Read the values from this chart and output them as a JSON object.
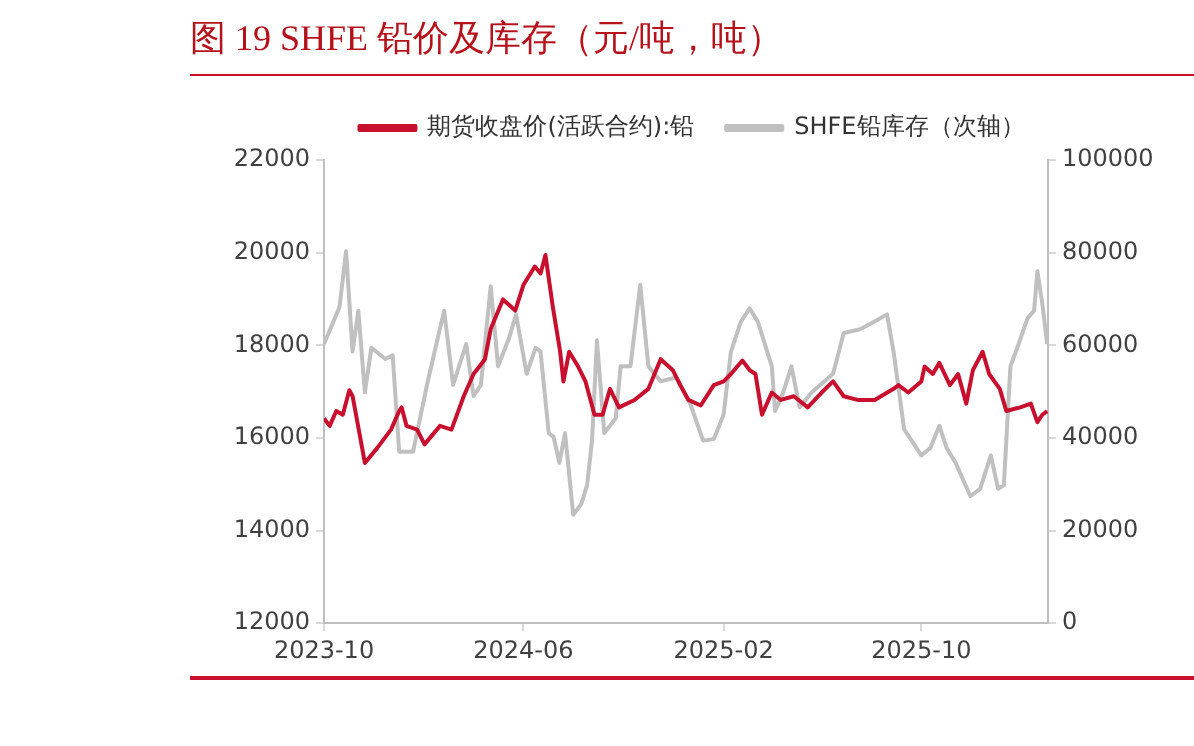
{
  "chart_data": {
    "type": "line",
    "title": "图 19 SHFE 铅价及库存（元/吨，吨）",
    "legend": "top",
    "grid": false,
    "marker": "none",
    "line_style": "solid",
    "xlim": [
      "2023-10-01",
      "2026-03-05"
    ],
    "xticks": [
      "2023-10",
      "2024-06",
      "2025-02",
      "2025-10"
    ],
    "ylim": [
      12000,
      22000
    ],
    "yticks": [
      12000,
      14000,
      16000,
      18000,
      20000,
      22000
    ],
    "y2lim": [
      0,
      100000
    ],
    "y2ticks": [
      0,
      20000,
      40000,
      60000,
      80000,
      100000
    ],
    "series": [
      {
        "name": "期货收盘价(活跃合约):铅",
        "color": "#c8102e",
        "axis": "y",
        "x": [
          "2023-10-01",
          "2023-10-08",
          "2023-10-16",
          "2023-10-24",
          "2023-11-01",
          "2023-11-05",
          "2023-11-15",
          "2023-11-20",
          "2023-12-05",
          "2023-12-22",
          "2024-01-01",
          "2024-01-04",
          "2024-01-10",
          "2024-01-23",
          "2024-02-01",
          "2024-02-20",
          "2024-03-05",
          "2024-03-20",
          "2024-04-01",
          "2024-04-15",
          "2024-04-22",
          "2024-05-07",
          "2024-05-22",
          "2024-06-01",
          "2024-06-15",
          "2024-06-22",
          "2024-06-28",
          "2024-07-07",
          "2024-07-16",
          "2024-07-20",
          "2024-07-27",
          "2024-08-07",
          "2024-08-16",
          "2024-08-27",
          "2024-09-06",
          "2024-09-15",
          "2024-09-26",
          "2024-10-15",
          "2024-11-01",
          "2024-11-16",
          "2024-12-01",
          "2024-12-10",
          "2024-12-20",
          "2025-01-04",
          "2025-01-20",
          "2025-02-01",
          "2025-02-10",
          "2025-02-24",
          "2025-03-05",
          "2025-03-12",
          "2025-03-20",
          "2025-04-01",
          "2025-04-12",
          "2025-04-28",
          "2025-05-15",
          "2025-06-01",
          "2025-06-15",
          "2025-06-28",
          "2025-07-15",
          "2025-08-05",
          "2025-08-28",
          "2025-09-03",
          "2025-09-15",
          "2025-10-01",
          "2025-10-05",
          "2025-10-15",
          "2025-10-23",
          "2025-11-05",
          "2025-11-15",
          "2025-11-25",
          "2025-12-03",
          "2025-12-15",
          "2025-12-23",
          "2026-01-05",
          "2026-01-13",
          "2026-01-30",
          "2026-02-12",
          "2026-02-20",
          "2026-02-26",
          "2026-03-04"
        ],
        "values": [
          16420,
          16260,
          16580,
          16500,
          17030,
          16900,
          15940,
          15460,
          15780,
          16180,
          16580,
          16660,
          16260,
          16180,
          15860,
          16260,
          16180,
          16900,
          17380,
          17700,
          18350,
          18990,
          18750,
          19300,
          19700,
          19550,
          19950,
          18830,
          17860,
          17220,
          17860,
          17540,
          17220,
          16500,
          16500,
          17060,
          16660,
          16820,
          17060,
          17700,
          17460,
          17140,
          16820,
          16700,
          17140,
          17220,
          17380,
          17670,
          17460,
          17380,
          16500,
          16980,
          16820,
          16900,
          16660,
          16980,
          17220,
          16900,
          16820,
          16820,
          17060,
          17140,
          16980,
          17220,
          17540,
          17380,
          17620,
          17140,
          17380,
          16740,
          17460,
          17860,
          17380,
          17060,
          16580,
          16660,
          16740,
          16340,
          16500,
          16580
        ]
      },
      {
        "name": "SHFE铅库存（次轴）",
        "color": "#c0c0c0",
        "axis": "y2",
        "x": [
          "2023-10-01",
          "2023-10-20",
          "2023-10-28",
          "2023-11-05",
          "2023-11-12",
          "2023-11-20",
          "2023-11-28",
          "2023-12-15",
          "2023-12-24",
          "2024-01-01",
          "2024-01-18",
          "2024-02-05",
          "2024-02-25",
          "2024-03-07",
          "2024-03-23",
          "2024-04-01",
          "2024-04-10",
          "2024-04-22",
          "2024-05-01",
          "2024-05-15",
          "2024-05-23",
          "2024-06-05",
          "2024-06-16",
          "2024-06-22",
          "2024-07-02",
          "2024-07-08",
          "2024-07-15",
          "2024-07-22",
          "2024-08-01",
          "2024-08-11",
          "2024-08-18",
          "2024-08-24",
          "2024-08-30",
          "2024-09-08",
          "2024-09-22",
          "2024-09-28",
          "2024-10-10",
          "2024-10-22",
          "2024-11-01",
          "2024-11-16",
          "2024-12-05",
          "2024-12-22",
          "2025-01-07",
          "2025-01-20",
          "2025-02-01",
          "2025-02-10",
          "2025-02-22",
          "2025-03-05",
          "2025-03-15",
          "2025-04-01",
          "2025-04-05",
          "2025-04-15",
          "2025-04-25",
          "2025-05-05",
          "2025-05-20",
          "2025-06-15",
          "2025-06-28",
          "2025-07-18",
          "2025-08-01",
          "2025-08-20",
          "2025-08-28",
          "2025-09-10",
          "2025-10-01",
          "2025-10-12",
          "2025-10-23",
          "2025-11-01",
          "2025-11-12",
          "2025-11-30",
          "2025-12-12",
          "2025-12-25",
          "2026-01-03",
          "2026-01-10",
          "2026-01-18",
          "2026-01-28",
          "2026-02-08",
          "2026-02-16",
          "2026-02-20",
          "2026-02-26",
          "2026-03-04"
        ],
        "values": [
          60260,
          68270,
          80290,
          58650,
          67470,
          49840,
          59460,
          57050,
          57850,
          37020,
          37020,
          52240,
          67470,
          51440,
          60260,
          49040,
          51440,
          72760,
          55450,
          61860,
          66670,
          53850,
          59460,
          58650,
          41030,
          40220,
          34620,
          41030,
          23400,
          25800,
          29810,
          39420,
          61060,
          41030,
          44230,
          55450,
          55450,
          73080,
          55450,
          52240,
          53040,
          47440,
          39420,
          39740,
          45030,
          58650,
          65060,
          67950,
          65060,
          55450,
          45830,
          49840,
          55450,
          46630,
          49840,
          53850,
          62660,
          63460,
          64740,
          66670,
          58650,
          41830,
          36220,
          37820,
          42630,
          37820,
          34620,
          27400,
          29010,
          36220,
          29010,
          29810,
          55450,
          60260,
          65860,
          67470,
          75960,
          69070,
          60260
        ]
      }
    ]
  }
}
